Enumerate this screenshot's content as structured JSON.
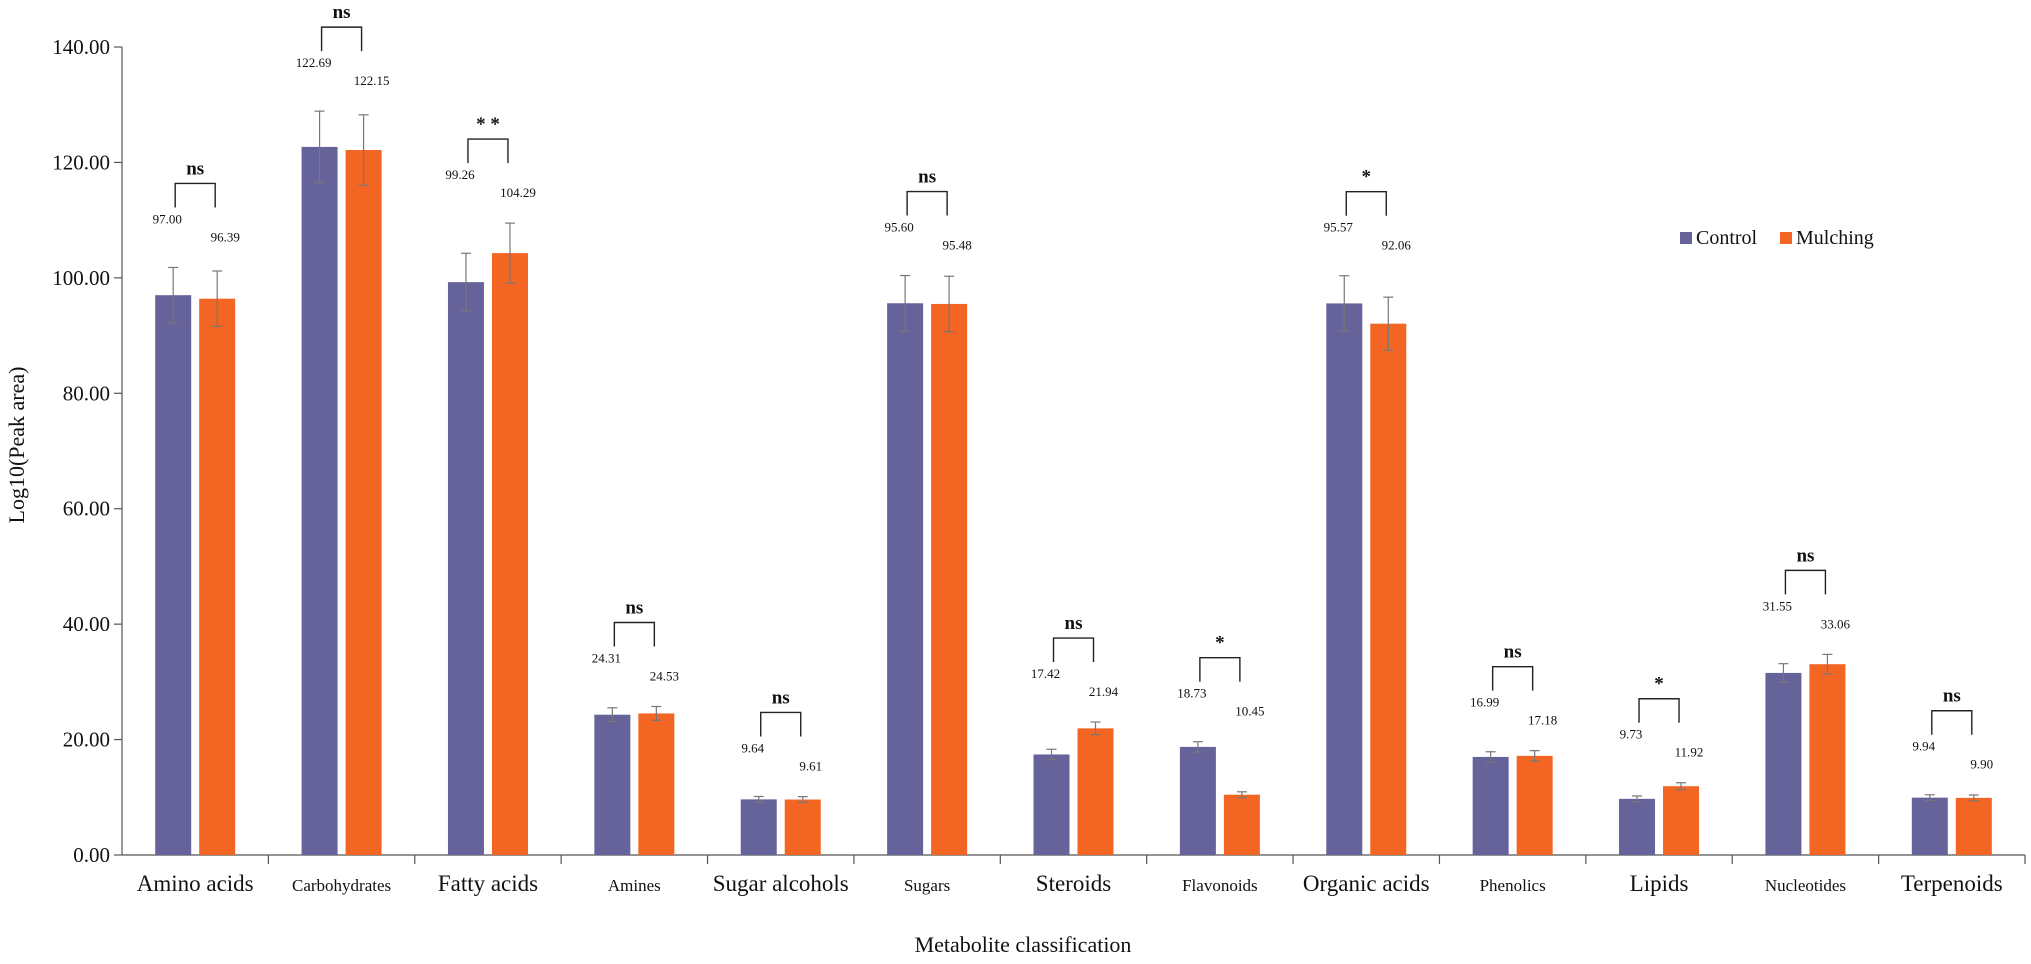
{
  "chart_data": {
    "type": "bar",
    "title": "",
    "xlabel": "Metabolite classification",
    "ylabel": "Log10(Peak area)",
    "ylim": [
      0,
      140
    ],
    "yticks": [
      "0.00",
      "20.00",
      "40.00",
      "60.00",
      "80.00",
      "100.00",
      "120.00",
      "140.00"
    ],
    "legend_position": "top-right",
    "categories": [
      "Amino acids",
      "Carbohydrates",
      "Fatty acids",
      "Amines",
      "Sugar alcohols",
      "Sugars",
      "Steroids",
      "Flavonoids",
      "Organic acids",
      "Phenolics",
      "Lipids",
      "Nucleotides",
      "Terpenoids"
    ],
    "series": [
      {
        "name": "Control",
        "color": "#66639b",
        "values": [
          97.0,
          122.69,
          99.26,
          24.31,
          9.64,
          95.6,
          17.42,
          18.73,
          95.57,
          16.99,
          9.73,
          31.55,
          9.94
        ],
        "labels": [
          "97.00",
          "122.69",
          "99.26",
          "24.31",
          "9.64",
          "95.60",
          "17.42",
          "18.73",
          "95.57",
          "16.99",
          "9.73",
          "31.55",
          "9.94"
        ],
        "errors": [
          4.8,
          6.2,
          5.0,
          1.2,
          0.5,
          4.8,
          0.9,
          0.9,
          4.8,
          0.9,
          0.5,
          1.6,
          0.5
        ]
      },
      {
        "name": "Mulching",
        "color": "#f26522",
        "values": [
          96.39,
          122.15,
          104.29,
          24.53,
          9.61,
          95.48,
          21.94,
          10.45,
          92.06,
          17.18,
          11.92,
          33.06,
          9.9
        ],
        "labels": [
          "96.39",
          "122.15",
          "104.29",
          "24.53",
          "9.61",
          "95.48",
          "21.94",
          "10.45",
          "92.06",
          "17.18",
          "11.92",
          "33.06",
          "9.90"
        ],
        "errors": [
          4.8,
          6.1,
          5.2,
          1.2,
          0.5,
          4.8,
          1.1,
          0.5,
          4.6,
          0.9,
          0.6,
          1.7,
          0.5
        ]
      }
    ],
    "significance": [
      "ns",
      "ns",
      "* *",
      "ns",
      "ns",
      "ns",
      "ns",
      "*",
      "*",
      "ns",
      "*",
      "ns",
      "ns"
    ]
  }
}
